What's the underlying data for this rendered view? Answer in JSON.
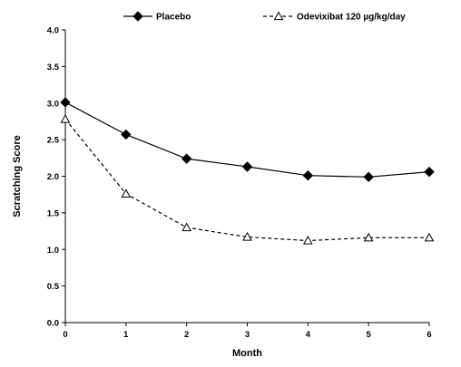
{
  "chart_data": {
    "type": "line",
    "title": "",
    "xlabel": "Month",
    "ylabel": "Scratching Score",
    "xlim": [
      0,
      6
    ],
    "ylim": [
      0,
      4
    ],
    "x_ticks": [
      "0",
      "1",
      "2",
      "3",
      "4",
      "5",
      "6"
    ],
    "y_ticks": [
      "0.0",
      "0.5",
      "1.0",
      "1.5",
      "2.0",
      "2.5",
      "3.0",
      "3.5",
      "4.0"
    ],
    "grid": false,
    "legend_position": "top",
    "series": [
      {
        "name": "Placebo",
        "marker": "filled-diamond",
        "line_style": "solid",
        "color": "#000000",
        "x": [
          0,
          1,
          2,
          3,
          4,
          5,
          6
        ],
        "y": [
          3.01,
          2.57,
          2.24,
          2.13,
          2.01,
          1.99,
          2.06
        ]
      },
      {
        "name": "Odevixibat 120 µg/kg/day",
        "marker": "open-triangle",
        "line_style": "dashed",
        "color": "#000000",
        "x": [
          0,
          1,
          2,
          3,
          4,
          5,
          6
        ],
        "y": [
          2.78,
          1.76,
          1.3,
          1.17,
          1.12,
          1.16,
          1.16
        ]
      }
    ]
  }
}
